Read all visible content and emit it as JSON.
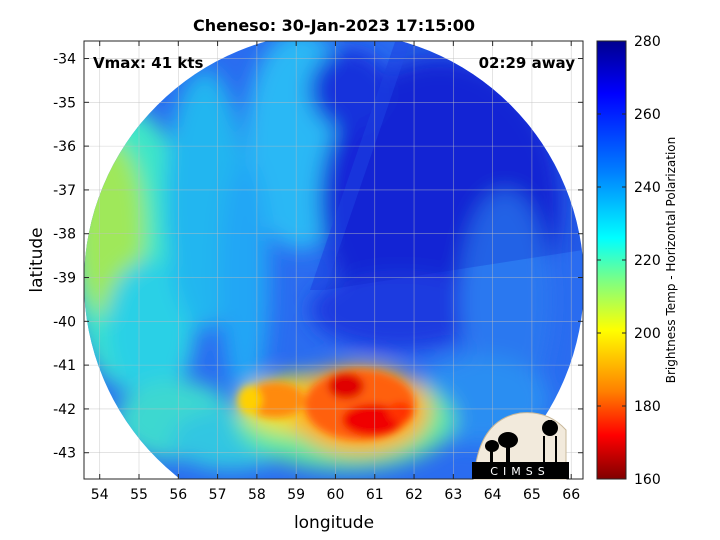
{
  "title": "Cheneso: 30-Jan-2023 17:15:00",
  "annotations": {
    "vmax": "Vmax: 41 kts",
    "time_away": "02:29 away"
  },
  "logo_text": "CIMSS",
  "chart_data": {
    "type": "heatmap",
    "title": "Cheneso: 30-Jan-2023 17:15:00",
    "xlabel": "longitude",
    "ylabel": "latitude",
    "xlim": [
      53.6,
      66.3
    ],
    "ylim": [
      -43.6,
      -33.6
    ],
    "xticks": [
      "54",
      "55",
      "56",
      "57",
      "58",
      "59",
      "60",
      "61",
      "62",
      "63",
      "64",
      "65",
      "66"
    ],
    "yticks": [
      "-34",
      "-35",
      "-36",
      "-37",
      "-38",
      "-39",
      "-40",
      "-41",
      "-42",
      "-43"
    ],
    "grid": true,
    "colorbar": {
      "label": "Brightness Temp - Horizontal Polarization",
      "min": 160,
      "max": 280,
      "ticks": [
        "280",
        "260",
        "240",
        "220",
        "200",
        "180",
        "160"
      ],
      "colormap": [
        "#00008f",
        "#0000ff",
        "#0080ff",
        "#00ffff",
        "#80ff80",
        "#ffff00",
        "#ff8000",
        "#ff0000",
        "#800000"
      ]
    },
    "swath": {
      "shape": "circle",
      "center_lon": 59.9,
      "center_lat": -39.0,
      "radius_deg_lat": 4.6
    },
    "features": [
      {
        "name": "cold convective core",
        "lon": 60.3,
        "lat": -41.6,
        "value": 178
      },
      {
        "name": "cold convective core",
        "lon": 60.9,
        "lat": -42.3,
        "value": 176
      },
      {
        "name": "convective band",
        "lon": 58.4,
        "lat": -42.0,
        "value": 195
      },
      {
        "name": "warm clear sky region",
        "lon": 61.5,
        "lat": -37.5,
        "value": 268
      },
      {
        "name": "moist western edge",
        "lon": 54.5,
        "lat": -38.5,
        "value": 222
      }
    ]
  }
}
